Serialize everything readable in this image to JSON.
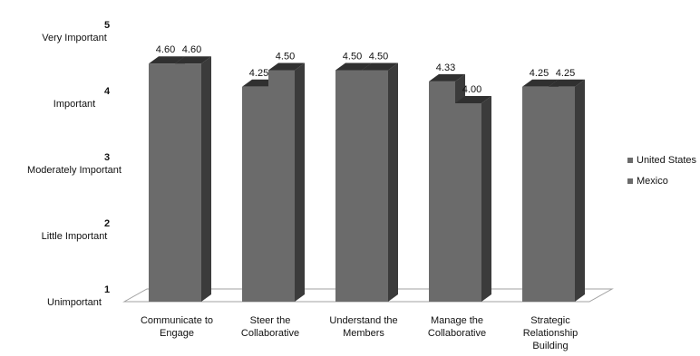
{
  "chart_data": {
    "type": "bar",
    "title": "",
    "xlabel": "",
    "ylabel": "",
    "ylim": [
      1,
      5
    ],
    "yticks": [
      {
        "value": 5,
        "number": "5",
        "label": "Very Important"
      },
      {
        "value": 4,
        "number": "4",
        "label": "Important"
      },
      {
        "value": 3,
        "number": "3",
        "label": "Moderately Important"
      },
      {
        "value": 2,
        "number": "2",
        "label": "Little Important"
      },
      {
        "value": 1,
        "number": "1",
        "label": "Unimportant"
      }
    ],
    "categories": [
      [
        "Communicate to",
        "Engage"
      ],
      [
        "Steer the",
        "Collaborative"
      ],
      [
        "Understand the",
        "Members"
      ],
      [
        "Manage the",
        "Collaborative"
      ],
      [
        "Strategic",
        "Relationship",
        "Building"
      ]
    ],
    "series": [
      {
        "name": "United States",
        "values": [
          4.6,
          4.25,
          4.5,
          4.33,
          4.25
        ],
        "labels": [
          "4.60",
          "4.25",
          "4.50",
          "4.33",
          "4.25"
        ],
        "color": "#6b6b6b"
      },
      {
        "name": "Mexico",
        "values": [
          4.6,
          4.5,
          4.5,
          4.0,
          4.25
        ],
        "labels": [
          "4.60",
          "4.50",
          "4.50",
          "4.00",
          "4.25"
        ],
        "color": "#6b6b6b"
      }
    ],
    "legend_position": "right",
    "grid": false,
    "style": "3d-clustered-column"
  }
}
